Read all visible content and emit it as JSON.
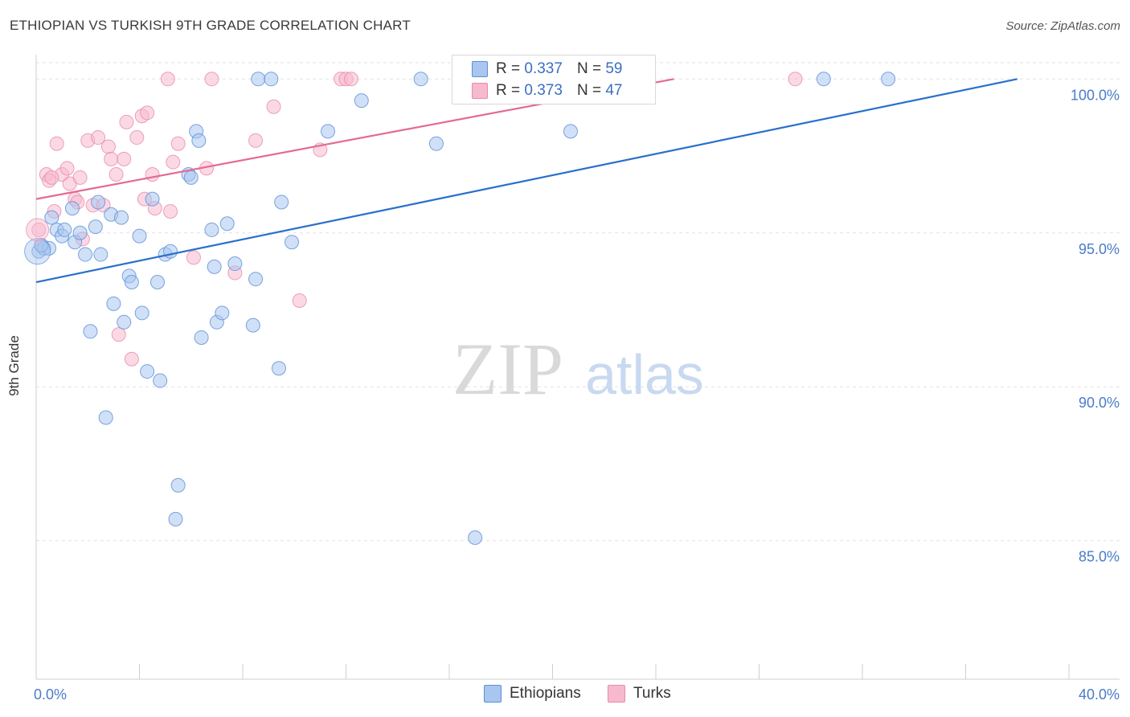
{
  "header": {
    "title": "ETHIOPIAN VS TURKISH 9TH GRADE CORRELATION CHART",
    "source": "Source: ZipAtlas.com"
  },
  "watermark": {
    "zip": "ZIP",
    "atlas": "atlas"
  },
  "legend": {
    "rows": [
      {
        "r_label": "R = ",
        "r_value": "0.337",
        "n_label": "N = ",
        "n_value": "59",
        "color": "#a9c6f0"
      },
      {
        "r_label": "R = ",
        "r_value": "0.373",
        "n_label": "N = ",
        "n_value": "47",
        "color": "#f7b9cd"
      }
    ]
  },
  "bottom_legend": [
    "Ethiopians",
    "Turks"
  ],
  "colors": {
    "blue_fill": "#a9c6f0",
    "blue_stroke": "#5b8fd6",
    "blue_line": "#2a6fcc",
    "pink_fill": "#f7b9cd",
    "pink_stroke": "#e88aa9",
    "pink_line": "#e46a94",
    "axis_text": "#4a7cc9"
  },
  "chart_data": {
    "type": "scatter",
    "title": "ETHIOPIAN VS TURKISH 9TH GRADE CORRELATION CHART",
    "xlabel": "",
    "ylabel": "9th Grade",
    "xlim": [
      0,
      40
    ],
    "ylim": [
      80.5,
      101
    ],
    "x_tick_labels": [
      {
        "x": 0,
        "label": "0.0%"
      },
      {
        "x": 40,
        "label": "40.0%"
      }
    ],
    "y_ticks": [
      {
        "y": 85,
        "label": "85.0%"
      },
      {
        "y": 90,
        "label": "90.0%"
      },
      {
        "y": 95,
        "label": "95.0%"
      },
      {
        "y": 100,
        "label": "100.0%"
      }
    ],
    "series": [
      {
        "name": "Ethiopians",
        "r": 0.337,
        "n": 59,
        "trend": {
          "x": [
            0,
            38
          ],
          "y": [
            93.4,
            100.0
          ]
        },
        "points": [
          [
            0.1,
            94.4
          ],
          [
            0.3,
            94.5
          ],
          [
            0.5,
            94.5
          ],
          [
            0.6,
            95.5
          ],
          [
            0.8,
            95.1
          ],
          [
            1.0,
            94.9
          ],
          [
            1.1,
            95.1
          ],
          [
            1.4,
            95.8
          ],
          [
            1.5,
            94.7
          ],
          [
            1.7,
            95.0
          ],
          [
            1.9,
            94.3
          ],
          [
            2.1,
            91.8
          ],
          [
            2.3,
            95.2
          ],
          [
            2.4,
            96.0
          ],
          [
            2.5,
            94.3
          ],
          [
            2.7,
            89.0
          ],
          [
            2.9,
            95.6
          ],
          [
            3.0,
            92.7
          ],
          [
            3.3,
            95.5
          ],
          [
            3.4,
            92.1
          ],
          [
            3.6,
            93.6
          ],
          [
            3.7,
            93.4
          ],
          [
            4.0,
            94.9
          ],
          [
            4.1,
            92.4
          ],
          [
            4.3,
            90.5
          ],
          [
            4.5,
            96.1
          ],
          [
            4.7,
            93.4
          ],
          [
            4.8,
            90.2
          ],
          [
            5.0,
            94.3
          ],
          [
            5.2,
            94.4
          ],
          [
            5.4,
            85.7
          ],
          [
            5.5,
            86.8
          ],
          [
            5.9,
            96.9
          ],
          [
            6.0,
            96.8
          ],
          [
            6.2,
            98.3
          ],
          [
            6.3,
            98.0
          ],
          [
            6.4,
            91.6
          ],
          [
            6.8,
            95.1
          ],
          [
            6.9,
            93.9
          ],
          [
            7.0,
            92.1
          ],
          [
            7.2,
            92.4
          ],
          [
            7.4,
            95.3
          ],
          [
            7.7,
            94.0
          ],
          [
            8.4,
            92.0
          ],
          [
            8.5,
            93.5
          ],
          [
            8.6,
            100.0
          ],
          [
            9.1,
            100.0
          ],
          [
            9.4,
            90.6
          ],
          [
            9.5,
            96.0
          ],
          [
            9.9,
            94.7
          ],
          [
            11.3,
            98.3
          ],
          [
            12.6,
            99.3
          ],
          [
            14.9,
            100.0
          ],
          [
            15.5,
            97.9
          ],
          [
            17.0,
            85.1
          ],
          [
            20.7,
            98.3
          ],
          [
            30.5,
            100.0
          ],
          [
            33.0,
            100.0
          ],
          [
            0.2,
            94.6
          ]
        ]
      },
      {
        "name": "Turks",
        "r": 0.373,
        "n": 47,
        "trend": {
          "x": [
            0,
            24.7
          ],
          "y": [
            96.1,
            100.0
          ]
        },
        "points": [
          [
            0.1,
            95.1
          ],
          [
            0.4,
            96.9
          ],
          [
            0.5,
            96.7
          ],
          [
            0.7,
            95.7
          ],
          [
            0.8,
            97.9
          ],
          [
            1.0,
            96.9
          ],
          [
            1.2,
            97.1
          ],
          [
            1.3,
            96.6
          ],
          [
            1.5,
            96.1
          ],
          [
            1.6,
            96.0
          ],
          [
            1.7,
            96.8
          ],
          [
            1.8,
            94.8
          ],
          [
            2.0,
            98.0
          ],
          [
            2.2,
            95.9
          ],
          [
            2.4,
            98.1
          ],
          [
            2.6,
            95.9
          ],
          [
            2.8,
            97.8
          ],
          [
            2.9,
            97.4
          ],
          [
            3.1,
            96.9
          ],
          [
            3.2,
            91.7
          ],
          [
            3.4,
            97.4
          ],
          [
            3.5,
            98.6
          ],
          [
            3.7,
            90.9
          ],
          [
            3.9,
            98.1
          ],
          [
            4.1,
            98.8
          ],
          [
            4.2,
            96.1
          ],
          [
            4.3,
            98.9
          ],
          [
            4.5,
            96.9
          ],
          [
            4.6,
            95.8
          ],
          [
            5.1,
            100.0
          ],
          [
            5.2,
            95.7
          ],
          [
            5.3,
            97.3
          ],
          [
            5.5,
            97.9
          ],
          [
            6.1,
            94.2
          ],
          [
            6.6,
            97.1
          ],
          [
            6.8,
            100.0
          ],
          [
            7.7,
            93.7
          ],
          [
            8.5,
            98.0
          ],
          [
            9.2,
            99.1
          ],
          [
            10.2,
            92.8
          ],
          [
            11.0,
            97.7
          ],
          [
            11.8,
            100.0
          ],
          [
            12.0,
            100.0
          ],
          [
            12.2,
            100.0
          ],
          [
            29.4,
            100.0
          ],
          [
            0.2,
            94.6
          ],
          [
            0.6,
            96.8
          ]
        ]
      }
    ]
  }
}
